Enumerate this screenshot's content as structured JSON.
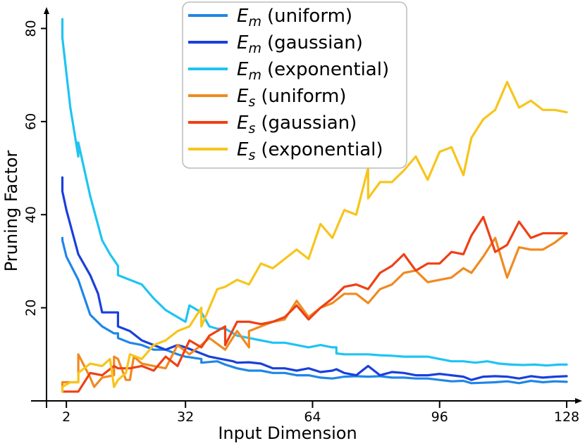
{
  "chart_data": {
    "type": "line",
    "xlabel": "Input Dimension",
    "ylabel": "Pruning Factor",
    "xlim": [
      -3,
      128
    ],
    "ylim": [
      0,
      84
    ],
    "xticks": [
      2,
      32,
      64,
      96,
      128
    ],
    "yticks": [
      20,
      40,
      60,
      80
    ],
    "legend_position": "top-center",
    "series": [
      {
        "name": "Em (uniform)",
        "sub": "m",
        "label": "(uniform)",
        "color": "#1f86e8",
        "points": [
          [
            1,
            35
          ],
          [
            1,
            34.5
          ],
          [
            2,
            31
          ],
          [
            5,
            26
          ],
          [
            8,
            18.5
          ],
          [
            11,
            16
          ],
          [
            14,
            14.5
          ],
          [
            15,
            14.5
          ],
          [
            15,
            13.5
          ],
          [
            18,
            12.5
          ],
          [
            21,
            12
          ],
          [
            24,
            11
          ],
          [
            27,
            11
          ],
          [
            30,
            10
          ],
          [
            32,
            9.5
          ],
          [
            36,
            9
          ],
          [
            36,
            8.2
          ],
          [
            40,
            8.5
          ],
          [
            42,
            7.8
          ],
          [
            45,
            7
          ],
          [
            48,
            6.5
          ],
          [
            51,
            6.5
          ],
          [
            54,
            6
          ],
          [
            57,
            6
          ],
          [
            60,
            5.5
          ],
          [
            63,
            5.5
          ],
          [
            66,
            5
          ],
          [
            69,
            4.8
          ],
          [
            72,
            5.2
          ],
          [
            75,
            5.3
          ],
          [
            78,
            5.2
          ],
          [
            81,
            5.3
          ],
          [
            84,
            5
          ],
          [
            87,
            5
          ],
          [
            90,
            4.8
          ],
          [
            93,
            4.8
          ],
          [
            96,
            4.5
          ],
          [
            99,
            4.2
          ],
          [
            102,
            4.3
          ],
          [
            104,
            3.8
          ],
          [
            107,
            3.9
          ],
          [
            110,
            4
          ],
          [
            113,
            4.2
          ],
          [
            116,
            3.8
          ],
          [
            119,
            4.3
          ],
          [
            122,
            4
          ],
          [
            125,
            4.2
          ],
          [
            128,
            4.1
          ]
        ]
      },
      {
        "name": "Em (gaussian)",
        "sub": "m",
        "label": "(gaussian)",
        "color": "#1a3fdc",
        "points": [
          [
            1,
            48
          ],
          [
            1,
            45
          ],
          [
            2,
            41
          ],
          [
            5,
            31.5
          ],
          [
            8,
            27
          ],
          [
            10,
            23
          ],
          [
            11,
            19
          ],
          [
            14,
            19
          ],
          [
            15,
            19
          ],
          [
            15,
            16
          ],
          [
            18,
            15
          ],
          [
            21,
            13
          ],
          [
            24,
            12
          ],
          [
            27,
            11
          ],
          [
            30,
            12
          ],
          [
            32,
            11.5
          ],
          [
            35,
            10.5
          ],
          [
            38,
            9.5
          ],
          [
            41,
            9
          ],
          [
            44,
            8.5
          ],
          [
            45,
            8.2
          ],
          [
            48,
            8.3
          ],
          [
            51,
            8
          ],
          [
            54,
            7
          ],
          [
            57,
            7
          ],
          [
            60,
            6.5
          ],
          [
            63,
            7
          ],
          [
            66,
            6.2
          ],
          [
            69,
            6.5
          ],
          [
            70,
            6.8
          ],
          [
            72,
            6
          ],
          [
            75,
            5.5
          ],
          [
            78,
            7.5
          ],
          [
            81,
            5.5
          ],
          [
            84,
            6.2
          ],
          [
            87,
            6
          ],
          [
            90,
            5.5
          ],
          [
            93,
            5.5
          ],
          [
            96,
            5.8
          ],
          [
            99,
            5.5
          ],
          [
            102,
            5.2
          ],
          [
            104,
            4.5
          ],
          [
            107,
            5.2
          ],
          [
            110,
            5.3
          ],
          [
            113,
            5.2
          ],
          [
            116,
            4.8
          ],
          [
            119,
            5.3
          ],
          [
            122,
            5
          ],
          [
            125,
            5.2
          ],
          [
            128,
            5.3
          ]
        ]
      },
      {
        "name": "Em (exponential)",
        "sub": "m",
        "label": "(exponential)",
        "color": "#1ec4f2",
        "points": [
          [
            1,
            82
          ],
          [
            1,
            78
          ],
          [
            3,
            63
          ],
          [
            5,
            52.5
          ],
          [
            5,
            55.5
          ],
          [
            8,
            44
          ],
          [
            11,
            34.5
          ],
          [
            13,
            31.5
          ],
          [
            15,
            29
          ],
          [
            15,
            27
          ],
          [
            18,
            26
          ],
          [
            21,
            25
          ],
          [
            24,
            22
          ],
          [
            27,
            19.5
          ],
          [
            30,
            18
          ],
          [
            32,
            17
          ],
          [
            33,
            20.5
          ],
          [
            36,
            19
          ],
          [
            38,
            16
          ],
          [
            40,
            15.5
          ],
          [
            42,
            15.5
          ],
          [
            45,
            14
          ],
          [
            48,
            13.5
          ],
          [
            51,
            13
          ],
          [
            54,
            12.5
          ],
          [
            57,
            12.5
          ],
          [
            60,
            12
          ],
          [
            63,
            11.5
          ],
          [
            66,
            12
          ],
          [
            69,
            11.5
          ],
          [
            70,
            11.5
          ],
          [
            70,
            10.2
          ],
          [
            72,
            10
          ],
          [
            75,
            10
          ],
          [
            78,
            10
          ],
          [
            81,
            9.8
          ],
          [
            84,
            9.7
          ],
          [
            87,
            9.5
          ],
          [
            90,
            9.5
          ],
          [
            93,
            9.5
          ],
          [
            96,
            9
          ],
          [
            99,
            8.5
          ],
          [
            102,
            8.5
          ],
          [
            105,
            8.2
          ],
          [
            108,
            8.5
          ],
          [
            111,
            8
          ],
          [
            114,
            7.8
          ],
          [
            117,
            7.7
          ],
          [
            120,
            7.8
          ],
          [
            123,
            7.6
          ],
          [
            126,
            7.8
          ],
          [
            128,
            7.8
          ]
        ]
      },
      {
        "name": "Es (uniform)",
        "sub": "s",
        "label": "(uniform)",
        "color": "#f08a20",
        "points": [
          [
            1,
            2
          ],
          [
            1,
            4
          ],
          [
            3,
            4
          ],
          [
            5,
            4
          ],
          [
            5,
            10
          ],
          [
            8,
            5
          ],
          [
            9,
            3
          ],
          [
            11,
            5
          ],
          [
            14,
            5.5
          ],
          [
            14,
            9.5
          ],
          [
            15,
            9
          ],
          [
            17,
            4.5
          ],
          [
            18,
            4.5
          ],
          [
            19,
            9.5
          ],
          [
            21,
            8
          ],
          [
            24,
            7.5
          ],
          [
            27,
            7
          ],
          [
            30,
            12
          ],
          [
            33,
            10
          ],
          [
            36,
            12
          ],
          [
            38,
            13.5
          ],
          [
            42,
            11
          ],
          [
            45,
            15
          ],
          [
            48,
            11.5
          ],
          [
            48,
            15
          ],
          [
            51,
            16
          ],
          [
            54,
            17
          ],
          [
            57,
            17.5
          ],
          [
            60,
            21.5
          ],
          [
            63,
            18
          ],
          [
            66,
            20
          ],
          [
            69,
            21
          ],
          [
            72,
            23
          ],
          [
            75,
            23
          ],
          [
            78,
            21
          ],
          [
            81,
            24
          ],
          [
            84,
            25
          ],
          [
            87,
            27.5
          ],
          [
            90,
            28
          ],
          [
            93,
            25.5
          ],
          [
            96,
            26
          ],
          [
            99,
            26.5
          ],
          [
            102,
            28.5
          ],
          [
            104,
            27.5
          ],
          [
            107,
            31
          ],
          [
            110,
            35
          ],
          [
            113,
            26.5
          ],
          [
            116,
            33
          ],
          [
            119,
            32.5
          ],
          [
            122,
            32.5
          ],
          [
            125,
            34
          ],
          [
            128,
            36
          ]
        ]
      },
      {
        "name": "Es (gaussian)",
        "sub": "s",
        "label": "(gaussian)",
        "color": "#ee4115",
        "points": [
          [
            1,
            2
          ],
          [
            1,
            2
          ],
          [
            3,
            2
          ],
          [
            5,
            2
          ],
          [
            5,
            2
          ],
          [
            8,
            6
          ],
          [
            11,
            5.5
          ],
          [
            14,
            7.5
          ],
          [
            15,
            7
          ],
          [
            18,
            7
          ],
          [
            21,
            7.5
          ],
          [
            24,
            6.5
          ],
          [
            27,
            9.5
          ],
          [
            30,
            7.5
          ],
          [
            33,
            13
          ],
          [
            36,
            11.5
          ],
          [
            38,
            14
          ],
          [
            42,
            16
          ],
          [
            42,
            12
          ],
          [
            45,
            17
          ],
          [
            48,
            17
          ],
          [
            51,
            16.5
          ],
          [
            54,
            17
          ],
          [
            57,
            18
          ],
          [
            60,
            20.5
          ],
          [
            63,
            17.5
          ],
          [
            66,
            20
          ],
          [
            69,
            22
          ],
          [
            72,
            24.5
          ],
          [
            75,
            25
          ],
          [
            78,
            24
          ],
          [
            81,
            27.5
          ],
          [
            84,
            29
          ],
          [
            87,
            31.5
          ],
          [
            90,
            28
          ],
          [
            93,
            29.5
          ],
          [
            96,
            29.5
          ],
          [
            99,
            32
          ],
          [
            102,
            31.5
          ],
          [
            104,
            35.5
          ],
          [
            107,
            39.5
          ],
          [
            110,
            32
          ],
          [
            113,
            33.5
          ],
          [
            116,
            38.5
          ],
          [
            119,
            35
          ],
          [
            122,
            36
          ],
          [
            125,
            36
          ],
          [
            128,
            36
          ]
        ]
      },
      {
        "name": "Es (exponential)",
        "sub": "s",
        "label": "(exponential)",
        "color": "#f7c51b",
        "points": [
          [
            1,
            2
          ],
          [
            1,
            3
          ],
          [
            3,
            4
          ],
          [
            5,
            4
          ],
          [
            5,
            6
          ],
          [
            8,
            8
          ],
          [
            11,
            7.5
          ],
          [
            13,
            9
          ],
          [
            14,
            3
          ],
          [
            15,
            4.5
          ],
          [
            17,
            6
          ],
          [
            18,
            10
          ],
          [
            21,
            9
          ],
          [
            24,
            12
          ],
          [
            27,
            13
          ],
          [
            30,
            15
          ],
          [
            33,
            16
          ],
          [
            36,
            20
          ],
          [
            36,
            16
          ],
          [
            38,
            20
          ],
          [
            40,
            24
          ],
          [
            42,
            24.5
          ],
          [
            45,
            26
          ],
          [
            48,
            25
          ],
          [
            51,
            29.5
          ],
          [
            54,
            28.5
          ],
          [
            57,
            30.5
          ],
          [
            60,
            32.5
          ],
          [
            63,
            30.5
          ],
          [
            66,
            38
          ],
          [
            69,
            35
          ],
          [
            72,
            41
          ],
          [
            75,
            40
          ],
          [
            78,
            50
          ],
          [
            78,
            43.5
          ],
          [
            81,
            47
          ],
          [
            84,
            47
          ],
          [
            87,
            49.5
          ],
          [
            90,
            52.5
          ],
          [
            93,
            47.5
          ],
          [
            96,
            53.5
          ],
          [
            99,
            54.5
          ],
          [
            102,
            48.5
          ],
          [
            104,
            56.5
          ],
          [
            107,
            60.5
          ],
          [
            110,
            62.5
          ],
          [
            113,
            68.5
          ],
          [
            116,
            63
          ],
          [
            119,
            64.5
          ],
          [
            122,
            62.5
          ],
          [
            125,
            62.5
          ],
          [
            128,
            62
          ]
        ]
      }
    ]
  }
}
